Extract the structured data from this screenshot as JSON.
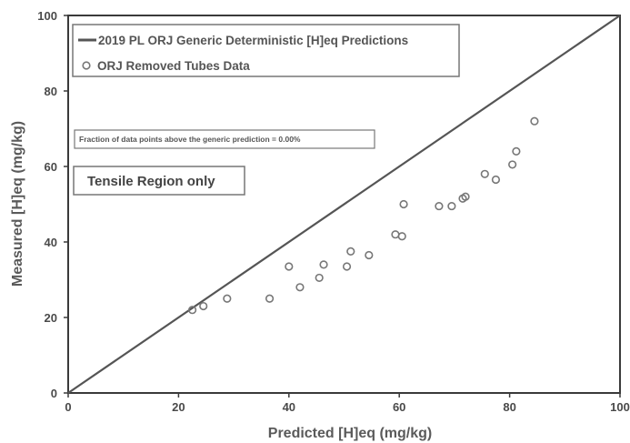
{
  "chart_data": {
    "type": "scatter",
    "xlabel": "Predicted [H]eq (mg/kg)",
    "ylabel": "Measured [H]eq (mg/kg)",
    "xlim": [
      0,
      100
    ],
    "ylim": [
      0,
      100
    ],
    "x_ticks": [
      "0",
      "20",
      "40",
      "60",
      "80",
      "100"
    ],
    "y_ticks": [
      "0",
      "20",
      "40",
      "60",
      "80",
      "100"
    ],
    "grid": false,
    "legend_placement": "top-left",
    "series": [
      {
        "name": "2019 PL ORJ Generic Deterministic [H]eq Predictions",
        "type": "line",
        "color": "#555555",
        "x": [
          0,
          100
        ],
        "y": [
          0,
          100
        ]
      },
      {
        "name": "ORJ Removed Tubes Data",
        "type": "scatter",
        "marker": "open-circle",
        "color": "#777777",
        "x": [
          22.5,
          24.5,
          28.8,
          36.5,
          40.0,
          42.0,
          45.5,
          46.3,
          50.5,
          51.2,
          54.5,
          59.3,
          60.5,
          60.8,
          67.2,
          69.5,
          71.5,
          72.0,
          75.5,
          77.5,
          80.5,
          81.2,
          84.5
        ],
        "y": [
          22.0,
          23.0,
          25.0,
          25.0,
          33.5,
          28.0,
          30.5,
          34.0,
          33.5,
          37.5,
          36.5,
          42.0,
          41.5,
          50.0,
          49.5,
          49.5,
          51.5,
          52.0,
          58.0,
          56.5,
          60.5,
          64.0,
          72.0
        ]
      }
    ],
    "annotations": [
      "Fraction of data points above the generic prediction = 0.00%",
      "Tensile Region only"
    ]
  },
  "colors": {
    "axis": "#3a3a3a",
    "line": "#555555",
    "marker": "#777777",
    "box_border": "#777777"
  }
}
